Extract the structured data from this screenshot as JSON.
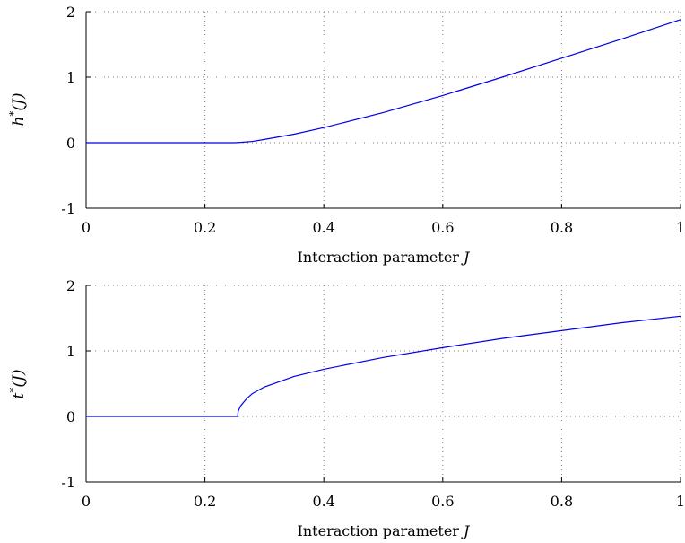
{
  "chart_data": [
    {
      "type": "line",
      "ylabel": "h*(J)",
      "xlabel": "Interaction parameter J",
      "xlim": [
        0,
        1
      ],
      "ylim": [
        -1,
        2
      ],
      "xticks": [
        "0",
        "0.2",
        "0.4",
        "0.6",
        "0.8",
        "1"
      ],
      "yticks": [
        "-1",
        "0",
        "1",
        "2"
      ],
      "grid": true,
      "series": [
        {
          "color": "#0000e6",
          "x": [
            0,
            0.1,
            0.2,
            0.25,
            0.26,
            0.28,
            0.3,
            0.35,
            0.4,
            0.5,
            0.6,
            0.7,
            0.8,
            0.9,
            1.0
          ],
          "y": [
            0,
            0,
            0,
            0,
            0.005,
            0.02,
            0.05,
            0.13,
            0.23,
            0.46,
            0.72,
            1.0,
            1.29,
            1.58,
            1.88
          ]
        }
      ]
    },
    {
      "type": "line",
      "ylabel": "t*(J)",
      "xlabel": "Interaction parameter J",
      "xlim": [
        0,
        1
      ],
      "ylim": [
        -1,
        2
      ],
      "xticks": [
        "0",
        "0.2",
        "0.4",
        "0.6",
        "0.8",
        "1"
      ],
      "yticks": [
        "-1",
        "0",
        "1",
        "2"
      ],
      "grid": true,
      "series": [
        {
          "color": "#0000e6",
          "x": [
            0,
            0.1,
            0.2,
            0.255,
            0.256,
            0.26,
            0.27,
            0.28,
            0.3,
            0.35,
            0.4,
            0.5,
            0.6,
            0.7,
            0.8,
            0.9,
            1.0
          ],
          "y": [
            0,
            0,
            0,
            0,
            0.08,
            0.16,
            0.27,
            0.35,
            0.45,
            0.61,
            0.72,
            0.9,
            1.05,
            1.19,
            1.31,
            1.43,
            1.53
          ]
        }
      ]
    }
  ]
}
